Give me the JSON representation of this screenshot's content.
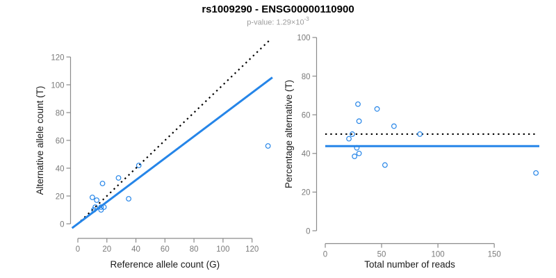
{
  "title": "rs1009290 - ENSG00000110900",
  "subtitle": {
    "label": "p-value: 1.29×10",
    "exponent": "-3"
  },
  "colors": {
    "accent_blue": "#2585E8",
    "dotted_line_black": "#000000",
    "axis_gray": "#8a8a8a",
    "tick_label_gray": "#7a7a7a",
    "axis_title_black": "#1a1a1a",
    "subtitle_gray": "#9c9c9c",
    "background": "#ffffff"
  },
  "chart_data": [
    {
      "type": "scatter",
      "name": "allele-counts-scatter",
      "xlabel": "Reference allele count (G)",
      "ylabel": "Alternative allele count (T)",
      "xlim": [
        0,
        135
      ],
      "ylim": [
        0,
        135
      ],
      "xticks": [
        0,
        20,
        40,
        60,
        80,
        100,
        120
      ],
      "yticks": [
        0,
        20,
        40,
        60,
        80,
        100,
        120
      ],
      "grid": false,
      "legend": "none",
      "points": [
        [
          10,
          19
        ],
        [
          13,
          17
        ],
        [
          17,
          29
        ],
        [
          28,
          33
        ],
        [
          12,
          12
        ],
        [
          42,
          42
        ],
        [
          11,
          10
        ],
        [
          16,
          12
        ],
        [
          18,
          12
        ],
        [
          16,
          10
        ],
        [
          35,
          18
        ],
        [
          131,
          56
        ]
      ],
      "lines": [
        {
          "name": "identity-line",
          "style": "dotted",
          "color": "#000000",
          "from": [
            2,
            2
          ],
          "to": [
            133,
            133
          ]
        },
        {
          "name": "fitted-ratio-line",
          "style": "solid",
          "color": "#2585E8",
          "from": [
            -4,
            -3.1
          ],
          "to": [
            134,
            105.3
          ]
        }
      ]
    },
    {
      "type": "scatter",
      "name": "percentage-vs-reads-scatter",
      "xlabel": "Total number of reads",
      "ylabel": "Percentage alternative (T)",
      "xlim": [
        0,
        190
      ],
      "ylim": [
        0,
        105
      ],
      "xticks": [
        0,
        50,
        100,
        150
      ],
      "yticks": [
        0,
        20,
        40,
        60,
        80,
        100
      ],
      "grid": false,
      "legend": "none",
      "points": [
        [
          29,
          65.5
        ],
        [
          30,
          56.7
        ],
        [
          46,
          63.0
        ],
        [
          61,
          54.1
        ],
        [
          24,
          50.0
        ],
        [
          84,
          50.0
        ],
        [
          21,
          47.6
        ],
        [
          28,
          42.9
        ],
        [
          30,
          40.0
        ],
        [
          26,
          38.5
        ],
        [
          53,
          34.0
        ],
        [
          187,
          29.9
        ]
      ],
      "lines": [
        {
          "name": "expected-50pct-line",
          "style": "dotted",
          "color": "#000000",
          "from": [
            0,
            50
          ],
          "to": [
            186,
            50
          ]
        },
        {
          "name": "mean-percentage-line",
          "style": "solid",
          "color": "#2585E8",
          "from": [
            0,
            43.8
          ],
          "to": [
            190,
            43.8
          ]
        }
      ]
    }
  ]
}
